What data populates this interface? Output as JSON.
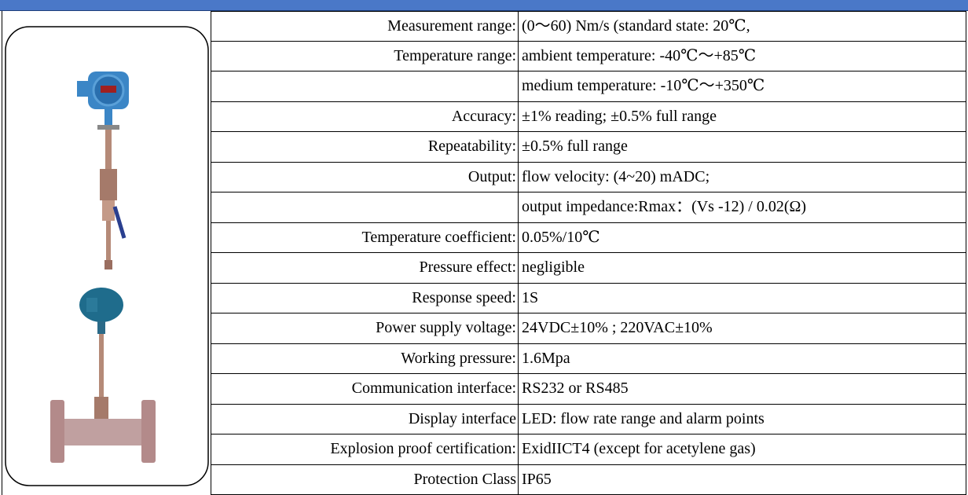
{
  "table": {
    "rows": [
      {
        "label": "Measurement range:",
        "value": "(0～60) Nm/s (standard state: 20℃,"
      },
      {
        "label": "Temperature range:",
        "value": "ambient temperature: -40℃～+85℃"
      },
      {
        "value": "medium temperature: -10℃～+350℃"
      },
      {
        "label": "Accuracy:",
        "value": "±1% reading; ±0.5% full range"
      },
      {
        "label": "Repeatability:",
        "value": " ±0.5% full range"
      },
      {
        "label": "Output:",
        "value": "flow velocity: (4~20) mADC;"
      },
      {
        "value": "output impedance:Rmax：(Vs -12) / 0.02(Ω)"
      },
      {
        "label": "Temperature coefficient:",
        "value": " 0.05%/10℃"
      },
      {
        "label": "Pressure effect:",
        "value": "negligible"
      },
      {
        "label": "Response speed:",
        "value": "1S"
      },
      {
        "label": "Power supply voltage:",
        "value": "24VDC±10% ; 220VAC±10%"
      },
      {
        "label": "Working pressure:",
        "value": "1.6Mpa"
      },
      {
        "label": "Communication interface:",
        "value": "RS232 or RS485"
      },
      {
        "label": "Display interface",
        "value": "LED: flow rate range and alarm points"
      },
      {
        "label": "Explosion proof certification:",
        "value": " ExidIICT4 (except for acetylene gas)"
      },
      {
        "label": "Protection Class",
        "value": "IP65"
      }
    ]
  }
}
